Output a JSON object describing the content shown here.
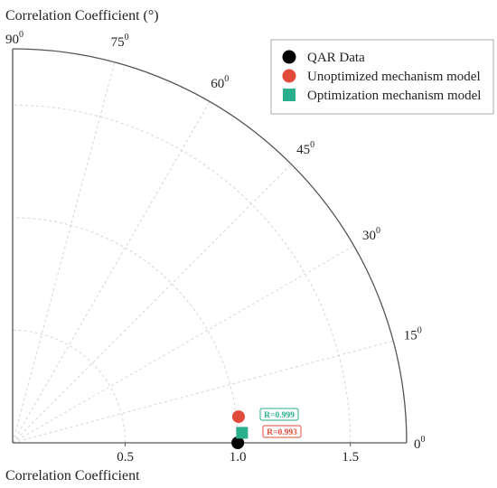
{
  "chart_data": {
    "type": "scatter",
    "subtype": "taylor-diagram",
    "title": "Correlation Coefficient (°)",
    "xlabel": "Correlation Coefficient",
    "r_range": [
      0,
      1.75
    ],
    "radial_ticks": [
      "0.5",
      "1.0",
      "1.5"
    ],
    "radial_tick_values": [
      0.5,
      1.0,
      1.5
    ],
    "grid_arcs": [
      0.5,
      1.0,
      1.5
    ],
    "angle_ticks": [
      {
        "deg": 0,
        "label": "0",
        "sup": "0"
      },
      {
        "deg": 15,
        "label": "15",
        "sup": "0"
      },
      {
        "deg": 30,
        "label": "30",
        "sup": "0"
      },
      {
        "deg": 45,
        "label": "45",
        "sup": "0"
      },
      {
        "deg": 60,
        "label": "60",
        "sup": "0"
      },
      {
        "deg": 75,
        "label": "75",
        "sup": "0"
      },
      {
        "deg": 90,
        "label": "90",
        "sup": "0"
      }
    ],
    "grid": true,
    "legend_position": "top-right",
    "series": [
      {
        "name": "QAR Data",
        "marker": "circle",
        "color": "#000000",
        "r": 1.0,
        "angle_deg": 0
      },
      {
        "name": "Unoptimized mechanism model",
        "marker": "circle",
        "color": "#e04b3c",
        "r": 1.01,
        "angle_deg": 6.6,
        "label": "R=0.993"
      },
      {
        "name": "Optimization mechanism model",
        "marker": "square",
        "color": "#2aaf8c",
        "r": 1.02,
        "angle_deg": 2.5,
        "label": "R=0.999"
      }
    ]
  }
}
